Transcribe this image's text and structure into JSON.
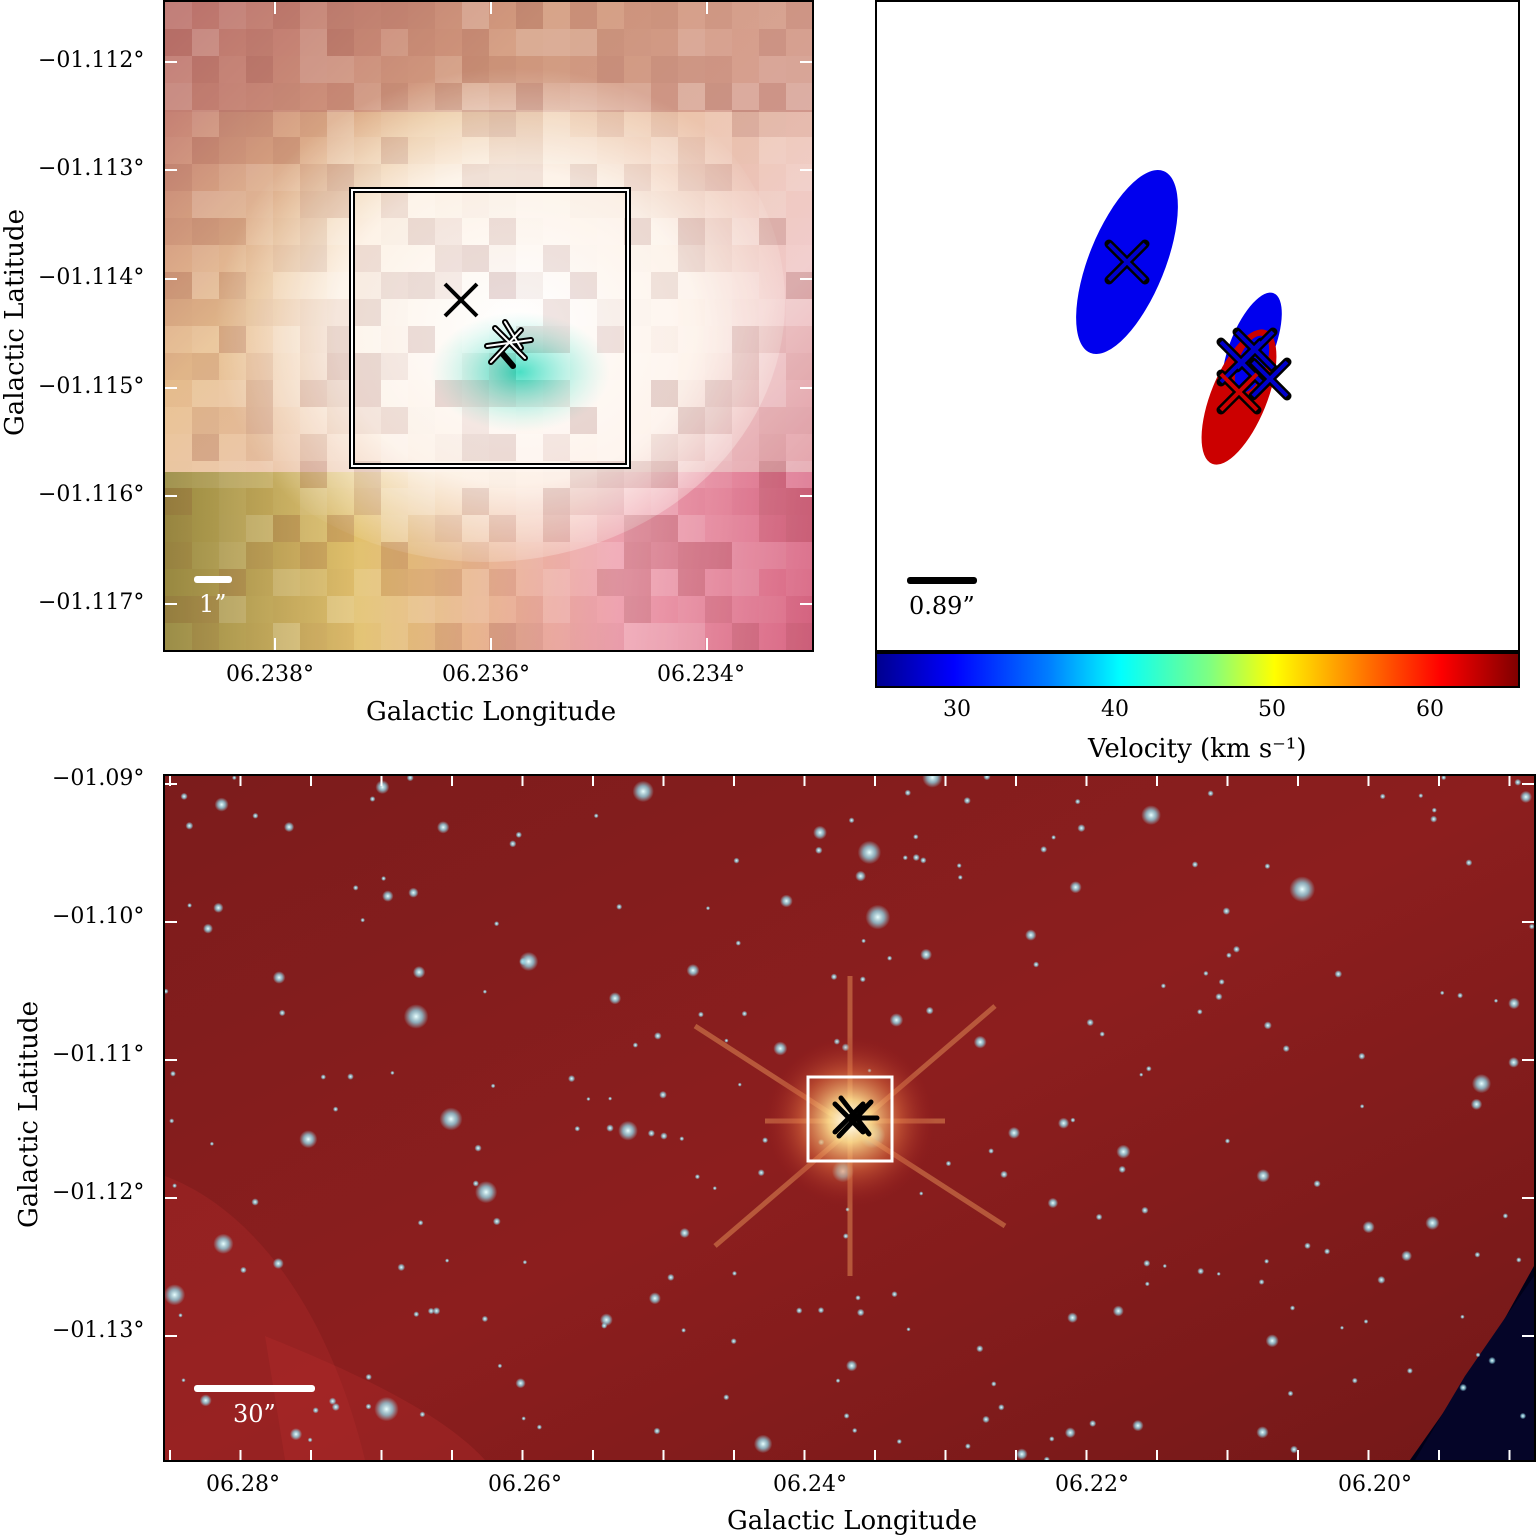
{
  "top_left": {
    "yticks": [
      "−01.112°",
      "−01.113°",
      "−01.114°",
      "−01.115°",
      "−01.116°",
      "−01.117°"
    ],
    "xticks": [
      "06.238°",
      "06.236°",
      "06.234°"
    ],
    "xlabel": "Galactic Longitude",
    "ylabel": "Galactic Latitude",
    "scale": "1”"
  },
  "top_right": {
    "scale": "0.89”",
    "colorbar_ticks": [
      "30",
      "40",
      "50",
      "60"
    ],
    "colorbar_label": "Velocity (km s⁻¹)",
    "colors": {
      "blue": "#0000ee",
      "red": "#cc0000"
    }
  },
  "bottom": {
    "yticks": [
      "−01.09°",
      "−01.10°",
      "−01.11°",
      "−01.12°",
      "−01.13°"
    ],
    "xticks": [
      "06.28°",
      "06.26°",
      "06.24°",
      "06.22°",
      "06.20°"
    ],
    "xlabel": "Galactic Longitude",
    "ylabel": "Galactic Latitude",
    "scale": "30”",
    "background_color": "#8a1a1a"
  }
}
